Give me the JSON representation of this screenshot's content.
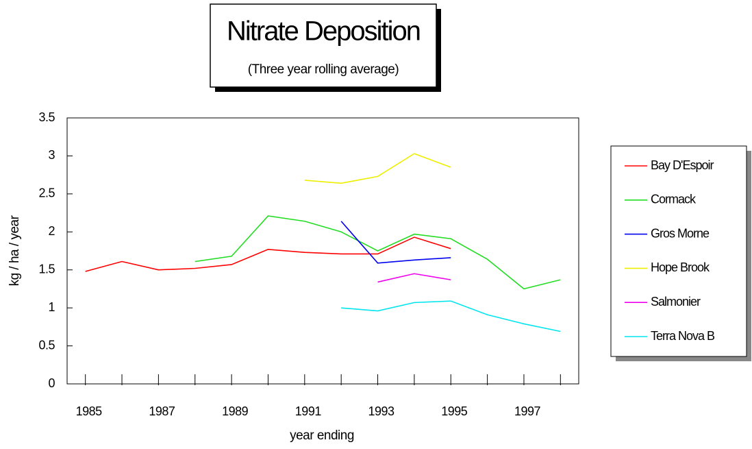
{
  "chart_data": {
    "type": "line",
    "title": "Nitrate Deposition",
    "subtitle": "(Three year rolling average)",
    "x_label": "year ending",
    "y_label": "kg / ha / year",
    "categories": [
      "1985",
      null,
      "1987",
      null,
      "1989",
      null,
      "1991",
      null,
      "1993",
      null,
      "1995",
      null,
      "1997",
      null
    ],
    "ylim": [
      0,
      3.5
    ],
    "yticks": [
      0,
      0.5,
      1,
      1.5,
      2,
      2.5,
      3,
      3.5
    ],
    "legend": "right",
    "series": [
      {
        "name": "Bay D'Espoir",
        "color": "#ff0000",
        "values": [
          1.48,
          1.61,
          1.5,
          1.52,
          1.57,
          1.77,
          1.73,
          1.71,
          1.71,
          1.93,
          1.78,
          null,
          null,
          null
        ]
      },
      {
        "name": "Cormack",
        "color": "#22dd22",
        "values": [
          null,
          null,
          null,
          1.61,
          1.68,
          2.21,
          2.14,
          2.0,
          1.75,
          1.97,
          1.91,
          1.64,
          1.25,
          1.37
        ]
      },
      {
        "name": "Gros Morne",
        "color": "#0000ee",
        "values": [
          null,
          null,
          null,
          null,
          null,
          null,
          null,
          2.14,
          1.59,
          1.63,
          1.66,
          null,
          null,
          null
        ]
      },
      {
        "name": "Hope Brook",
        "color": "#eeee00",
        "values": [
          null,
          null,
          null,
          null,
          null,
          null,
          2.68,
          2.64,
          2.73,
          3.03,
          2.85,
          null,
          null,
          null
        ]
      },
      {
        "name": "Salmonier",
        "color": "#ee00ee",
        "values": [
          null,
          null,
          null,
          null,
          null,
          null,
          null,
          null,
          1.34,
          1.45,
          1.37,
          null,
          null,
          null
        ]
      },
      {
        "name": "Terra Nova B",
        "color": "#00e5ee",
        "values": [
          null,
          null,
          null,
          null,
          null,
          null,
          null,
          1.0,
          0.96,
          1.07,
          1.09,
          0.91,
          0.79,
          0.69
        ]
      }
    ]
  }
}
